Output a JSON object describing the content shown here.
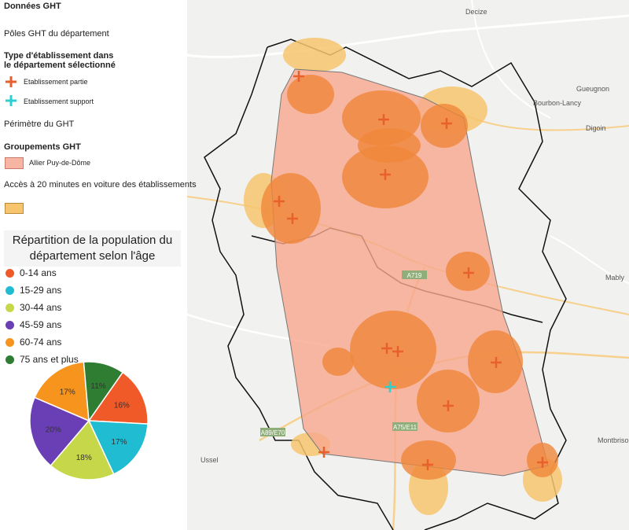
{
  "legend": {
    "title": "Données GHT",
    "poles": "Pôles GHT du département",
    "type_title": "Type d'établissement dans le département sélectionné",
    "partie": "Etablissement partie",
    "support": "Etablissement support",
    "perimetre": "Périmètre du GHT",
    "groupements": "Groupements GHT",
    "groupement_name": "Allier Puy-de-Dôme",
    "acces": "Accès à 20 minutes en voiture des établissements"
  },
  "map_labels": [
    "Decize",
    "Bourbon-Lancy",
    "Gueugnon",
    "Digoin",
    "Mably",
    "Montbrison",
    "Ussel",
    "A719",
    "A89/E70",
    "A75/E11"
  ],
  "chart_data": {
    "type": "pie",
    "title": "Répartition de la population du département selon l'âge",
    "categories": [
      "0-14 ans",
      "15-29 ans",
      "30-44 ans",
      "45-59 ans",
      "60-74 ans",
      "75 ans et plus"
    ],
    "values": [
      16,
      17,
      18,
      20,
      17,
      11
    ],
    "value_labels": [
      "16%",
      "17%",
      "18%",
      "20%",
      "17%",
      "11%"
    ],
    "colors": [
      "#f05a28",
      "#1fbcd2",
      "#c6d84a",
      "#6a3fb5",
      "#f7941d",
      "#2e7d32"
    ]
  }
}
